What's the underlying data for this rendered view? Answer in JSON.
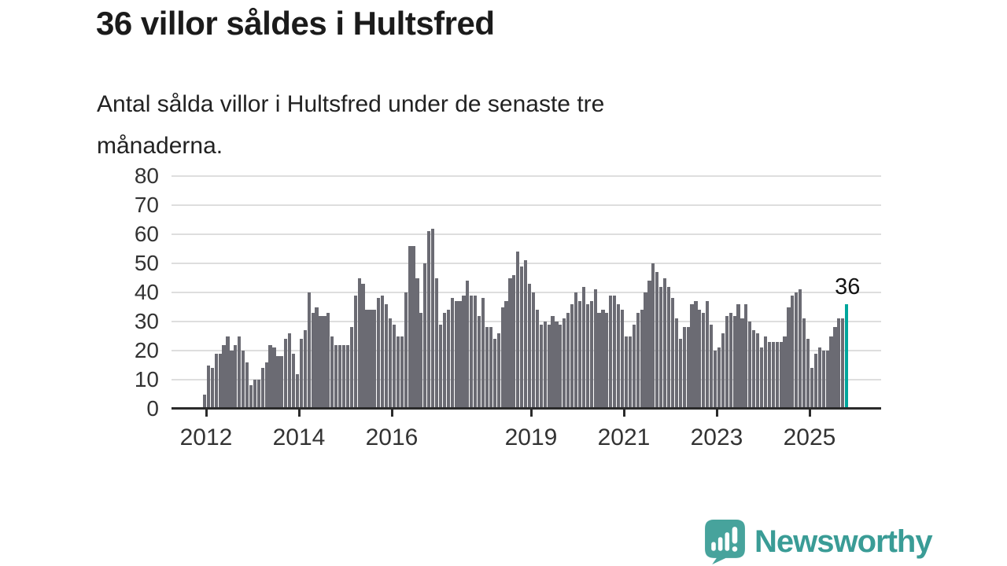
{
  "header": {
    "title": "36 villor såldes i Hultsfred",
    "subtitle": "Antal sålda villor i Hultsfred under de senaste tre månaderna.",
    "subtitle_lines": [
      "Antal sålda villor i Hultsfred under de senaste tre",
      "månaderna."
    ]
  },
  "chart_data": {
    "type": "bar",
    "title": "36 villor såldes i Hultsfred",
    "subtitle": "Antal sålda villor i Hultsfred under de senaste tre månaderna.",
    "frequency": "monthly",
    "x_start": "2012-01",
    "x_end": "2025-11",
    "values": [
      5,
      15,
      14,
      19,
      19,
      22,
      25,
      20,
      22,
      25,
      20,
      16,
      8,
      10,
      10,
      14,
      16,
      22,
      21,
      18,
      18,
      24,
      26,
      19,
      12,
      24,
      27,
      40,
      33,
      35,
      32,
      32,
      33,
      25,
      22,
      22,
      22,
      22,
      28,
      39,
      45,
      43,
      34,
      34,
      34,
      38,
      39,
      36,
      31,
      29,
      25,
      25,
      40,
      56,
      56,
      45,
      33,
      50,
      61,
      62,
      45,
      29,
      33,
      34,
      38,
      37,
      37,
      39,
      44,
      39,
      39,
      32,
      38,
      28,
      28,
      24,
      26,
      35,
      37,
      45,
      46,
      54,
      49,
      51,
      43,
      40,
      34,
      29,
      30,
      29,
      32,
      30,
      29,
      31,
      33,
      36,
      40,
      37,
      42,
      36,
      37,
      41,
      33,
      34,
      33,
      39,
      39,
      36,
      34,
      25,
      25,
      29,
      33,
      34,
      40,
      44,
      50,
      47,
      42,
      45,
      42,
      38,
      31,
      24,
      28,
      28,
      36,
      37,
      34,
      33,
      37,
      29,
      20,
      21,
      26,
      32,
      33,
      32,
      36,
      31,
      36,
      30,
      27,
      26,
      21,
      25,
      23,
      23,
      23,
      23,
      25,
      35,
      39,
      40,
      41,
      31,
      24,
      14,
      19,
      21,
      20,
      20,
      25,
      28,
      31,
      31,
      36
    ],
    "highlight": {
      "index": 166,
      "value": 36,
      "label": "36",
      "color": "#00a69c"
    },
    "y_ticks": [
      0,
      10,
      20,
      30,
      40,
      50,
      60,
      70,
      80
    ],
    "ylim": [
      0,
      80
    ],
    "x_tick_years": [
      "2012",
      "2014",
      "2016",
      "2019",
      "2021",
      "2023",
      "2025"
    ],
    "x_tick_start_year": 2012,
    "bar_color": "#6b6b73",
    "grid": true,
    "legend": "none"
  },
  "footer": {
    "brand": "Newsworthy"
  }
}
